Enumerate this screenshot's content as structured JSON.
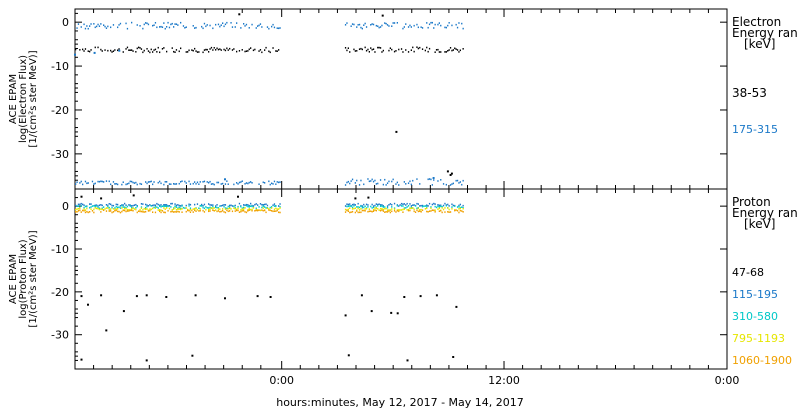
{
  "chart_data": [
    {
      "type": "scatter",
      "ylabel_lines": [
        "ACE EPAM",
        "log(Electron Flux)",
        "[1/(cm²s ster MeV)]"
      ],
      "ylim": [
        -38,
        3
      ],
      "yticks": [
        0,
        -10,
        -20,
        -30
      ],
      "ytick_labels": [
        "0",
        "-10",
        "-20",
        "-30"
      ],
      "legend_title": [
        "Electron",
        "Energy ran",
        "[keV]"
      ],
      "series": [
        {
          "name": "38-53",
          "color": "#000000",
          "bands": [
            {
              "x_start": 0.0,
              "x_end": 0.315,
              "y": -6.3,
              "spread": 0.6
            },
            {
              "x_start": 0.414,
              "x_end": 0.595,
              "y": -6.3,
              "spread": 0.6
            }
          ],
          "points": [
            [
              0.252,
              1.8
            ],
            [
              0.472,
              1.5
            ],
            [
              0.493,
              -25.0
            ],
            [
              0.572,
              -34.0
            ],
            [
              0.576,
              -34.8
            ],
            [
              0.578,
              -34.5
            ]
          ]
        },
        {
          "name": "175-315",
          "color": "#1a78c8",
          "bands": [
            {
              "x_start": 0.0,
              "x_end": 0.315,
              "y": -0.8,
              "spread": 0.7
            },
            {
              "x_start": 0.414,
              "x_end": 0.595,
              "y": -0.8,
              "spread": 0.7
            },
            {
              "x_start": 0.0,
              "x_end": 0.315,
              "y": -36.6,
              "spread": 0.4
            },
            {
              "x_start": 0.414,
              "x_end": 0.595,
              "y": -36.4,
              "spread": 0.7
            }
          ],
          "points": [
            [
              0.0,
              -7.4
            ],
            [
              0.03,
              -7.0
            ],
            [
              0.068,
              -6.5
            ],
            [
              0.23,
              -35.8
            ],
            [
              0.55,
              -35.5
            ]
          ]
        }
      ]
    },
    {
      "type": "scatter",
      "ylabel_lines": [
        "ACE EPAM",
        "log(Proton Flux)",
        "[1/(cm²s ster MeV)]"
      ],
      "ylim": [
        -38,
        4
      ],
      "yticks": [
        0,
        -10,
        -20,
        -30
      ],
      "ytick_labels": [
        "0",
        "-10",
        "-20",
        "-30"
      ],
      "legend_title": [
        "Proton",
        "Energy ran",
        "[keV]"
      ],
      "series": [
        {
          "name": "47-68",
          "color": "#000000",
          "bands": [],
          "points": [
            [
              0.01,
              2.2
            ],
            [
              0.04,
              1.8
            ],
            [
              0.09,
              2.5
            ],
            [
              0.25,
              2.2
            ],
            [
              0.43,
              1.8
            ],
            [
              0.45,
              2.0
            ],
            [
              0.01,
              -35.8
            ],
            [
              0.11,
              -36.0
            ],
            [
              0.18,
              -34.9
            ],
            [
              0.42,
              -34.8
            ],
            [
              0.51,
              -36.0
            ],
            [
              0.58,
              -35.2
            ],
            [
              0.01,
              -21.0
            ],
            [
              0.02,
              -23.0
            ],
            [
              0.04,
              -20.8
            ],
            [
              0.075,
              -24.5
            ],
            [
              0.095,
              -21.0
            ],
            [
              0.11,
              -20.8
            ],
            [
              0.14,
              -21.2
            ],
            [
              0.185,
              -20.8
            ],
            [
              0.23,
              -21.5
            ],
            [
              0.28,
              -21.0
            ],
            [
              0.3,
              -21.2
            ],
            [
              0.415,
              -25.5
            ],
            [
              0.44,
              -20.8
            ],
            [
              0.485,
              -24.9
            ],
            [
              0.495,
              -25.0
            ],
            [
              0.505,
              -21.2
            ],
            [
              0.53,
              -21.0
            ],
            [
              0.555,
              -20.8
            ],
            [
              0.585,
              -23.5
            ],
            [
              0.048,
              -29.0
            ],
            [
              0.455,
              -24.5
            ]
          ]
        },
        {
          "name": "115-195",
          "color": "#1a78c8",
          "bands": [
            {
              "x_start": 0.0,
              "x_end": 0.315,
              "y": 0.3,
              "spread": 0.3
            },
            {
              "x_start": 0.414,
              "x_end": 0.595,
              "y": 0.3,
              "spread": 0.3
            }
          ],
          "points": []
        },
        {
          "name": "310-580",
          "color": "#00c8c8",
          "bands": [
            {
              "x_start": 0.0,
              "x_end": 0.315,
              "y": -0.2,
              "spread": 0.3
            },
            {
              "x_start": 0.414,
              "x_end": 0.595,
              "y": -0.2,
              "spread": 0.3
            }
          ],
          "points": []
        },
        {
          "name": "795-1193",
          "color": "#e6e600",
          "bands": [
            {
              "x_start": 0.0,
              "x_end": 0.315,
              "y": -0.7,
              "spread": 0.3
            },
            {
              "x_start": 0.414,
              "x_end": 0.595,
              "y": -0.7,
              "spread": 0.3
            }
          ],
          "points": []
        },
        {
          "name": "1060-1900",
          "color": "#f0a000",
          "bands": [
            {
              "x_start": 0.0,
              "x_end": 0.315,
              "y": -1.2,
              "spread": 0.3
            },
            {
              "x_start": 0.414,
              "x_end": 0.595,
              "y": -1.2,
              "spread": 0.3
            }
          ],
          "points": []
        }
      ]
    }
  ],
  "x_axis": {
    "ticks": [
      0.317,
      0.658,
      1.0
    ],
    "tick_labels": [
      "0:00",
      "12:00",
      "0:00"
    ],
    "minor_ticks": [
      0.0,
      0.0285,
      0.057,
      0.0855,
      0.114,
      0.1425,
      0.171,
      0.1995,
      0.228,
      0.2565,
      0.285,
      0.317,
      0.3455,
      0.374,
      0.4025,
      0.431,
      0.4595,
      0.488,
      0.5165,
      0.545,
      0.5735,
      0.602,
      0.6305,
      0.658,
      0.6865,
      0.715,
      0.7435,
      0.772,
      0.8005,
      0.829,
      0.8575,
      0.886,
      0.9145,
      0.943,
      0.9715,
      1.0
    ],
    "xlabel": "hours:minutes, May 12, 2017 - May 14, 2017"
  }
}
